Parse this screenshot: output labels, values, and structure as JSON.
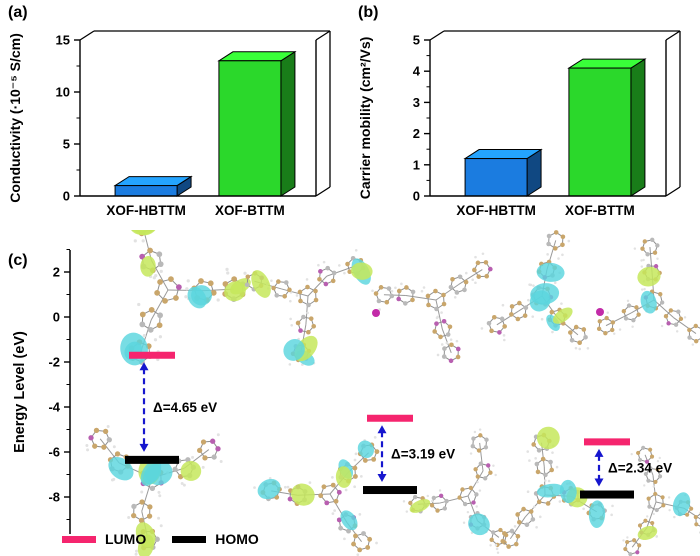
{
  "figure": {
    "background": "#ffffff",
    "panels": {
      "a": {
        "label": "(a)"
      },
      "b": {
        "label": "(b)"
      },
      "c": {
        "label": "(c)"
      }
    }
  },
  "colors": {
    "bar_blue": "#1B7CE0",
    "bar_green": "#2BD82B",
    "lumo_pink": "#F5256E",
    "homo_black": "#000000",
    "arrow_blue": "#1616CE",
    "dot_magenta": "#C22BA8",
    "axis": "#000000"
  },
  "chart_data": [
    {
      "id": "conductivity",
      "type": "bar",
      "style": "3d",
      "title": "",
      "categories": [
        "XOF-HBTTM",
        "XOF-BTTM"
      ],
      "values": [
        1.0,
        13.0
      ],
      "bar_colors": [
        "#1B7CE0",
        "#2BD82B"
      ],
      "xlabel": "",
      "ylabel": "Conductivity (·10⁻⁵ S/cm)",
      "ylim": [
        0,
        15
      ],
      "yticks": [
        0,
        5,
        10,
        15
      ],
      "grid": false,
      "legend_position": "none"
    },
    {
      "id": "carrier-mobility",
      "type": "bar",
      "style": "3d",
      "title": "",
      "categories": [
        "XOF-HBTTM",
        "XOF-BTTM"
      ],
      "values": [
        1.2,
        4.1
      ],
      "bar_colors": [
        "#1B7CE0",
        "#2BD82B"
      ],
      "xlabel": "",
      "ylabel": "Carrier mobility (cm²/Vs)",
      "ylim": [
        0,
        5
      ],
      "yticks": [
        0,
        1,
        2,
        3,
        4,
        5
      ],
      "grid": false,
      "legend_position": "none"
    },
    {
      "id": "energy-levels",
      "type": "scatter",
      "subtype": "energy-level-diagram",
      "title": "",
      "ylabel": "Energy Level (eV)",
      "ylim": [
        -9.7,
        3
      ],
      "yticks": [
        2,
        0,
        -2,
        -4,
        -6,
        -8
      ],
      "series": [
        {
          "name": "LUMO",
          "values": [
            -1.7,
            -4.5,
            -5.55
          ],
          "color": "#F5256E"
        },
        {
          "name": "HOMO",
          "values": [
            -6.35,
            -7.69,
            -7.89
          ],
          "color": "#000000"
        }
      ],
      "gap_labels": [
        "Δ=4.65 eV",
        "Δ=3.19 eV",
        "Δ=2.34 eV"
      ],
      "legend": [
        {
          "label": "LUMO",
          "color": "#F5256E"
        },
        {
          "label": "HOMO",
          "color": "#000000"
        }
      ],
      "legend_position": "bottom-left",
      "grid": false
    }
  ]
}
